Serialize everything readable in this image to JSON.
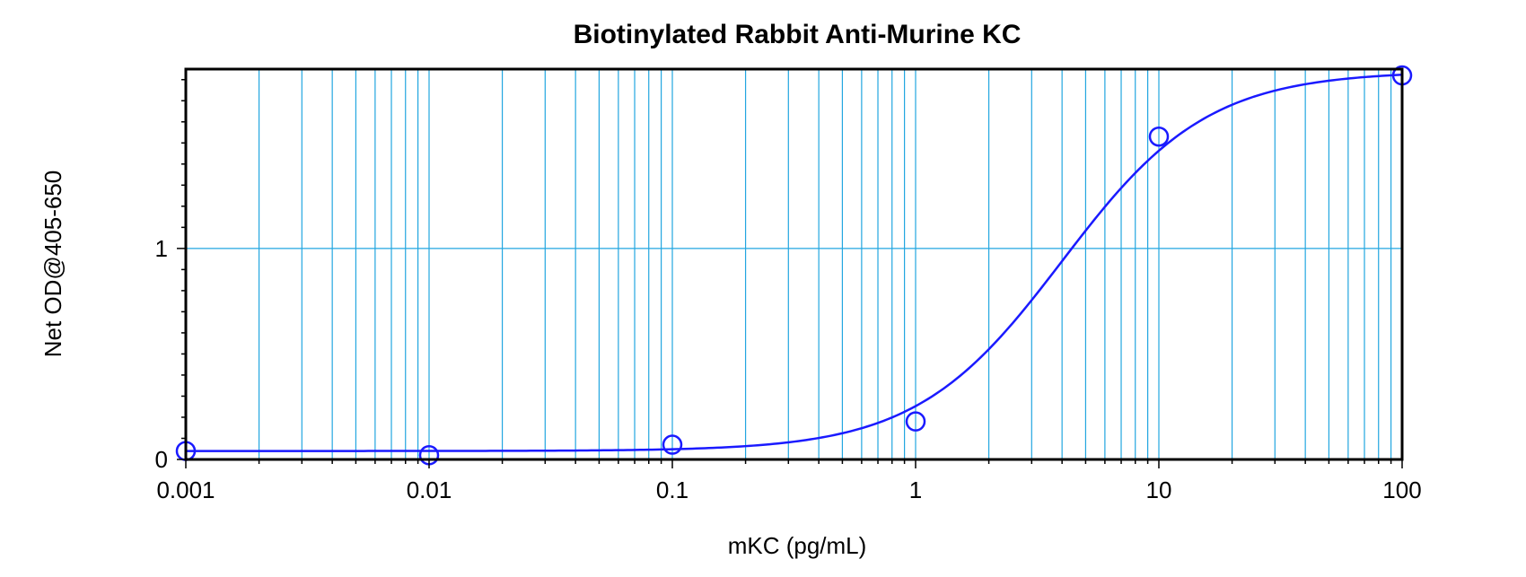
{
  "chart_data": {
    "type": "scatter",
    "title": "Biotinylated Rabbit Anti-Murine KC",
    "xlabel": "mKC (pg/mL)",
    "ylabel": "Net OD@405-650",
    "xscale": "log",
    "xlim": [
      0.001,
      100
    ],
    "ylim": [
      0,
      1.85
    ],
    "grid": true,
    "x_tick_labels": [
      "0.001",
      "0.01",
      "0.1",
      "1",
      "10",
      "100"
    ],
    "x_ticks": [
      0.001,
      0.01,
      0.1,
      1,
      10,
      100
    ],
    "y_tick_labels": [
      "0",
      "1"
    ],
    "y_ticks": [
      0,
      1
    ],
    "series": [
      {
        "x": [
          0.001,
          0.01,
          0.1,
          1,
          10,
          100
        ],
        "y": [
          0.04,
          0.02,
          0.07,
          0.18,
          1.53,
          1.82
        ]
      }
    ],
    "fit_curve": {
      "model": "4PL",
      "bottom": 0.04,
      "top": 1.84,
      "ec50": 4.0,
      "hill": 1.45
    },
    "colors": {
      "series": "#1a1aff",
      "grid": "#22a6e0",
      "axes": "#000000"
    }
  }
}
